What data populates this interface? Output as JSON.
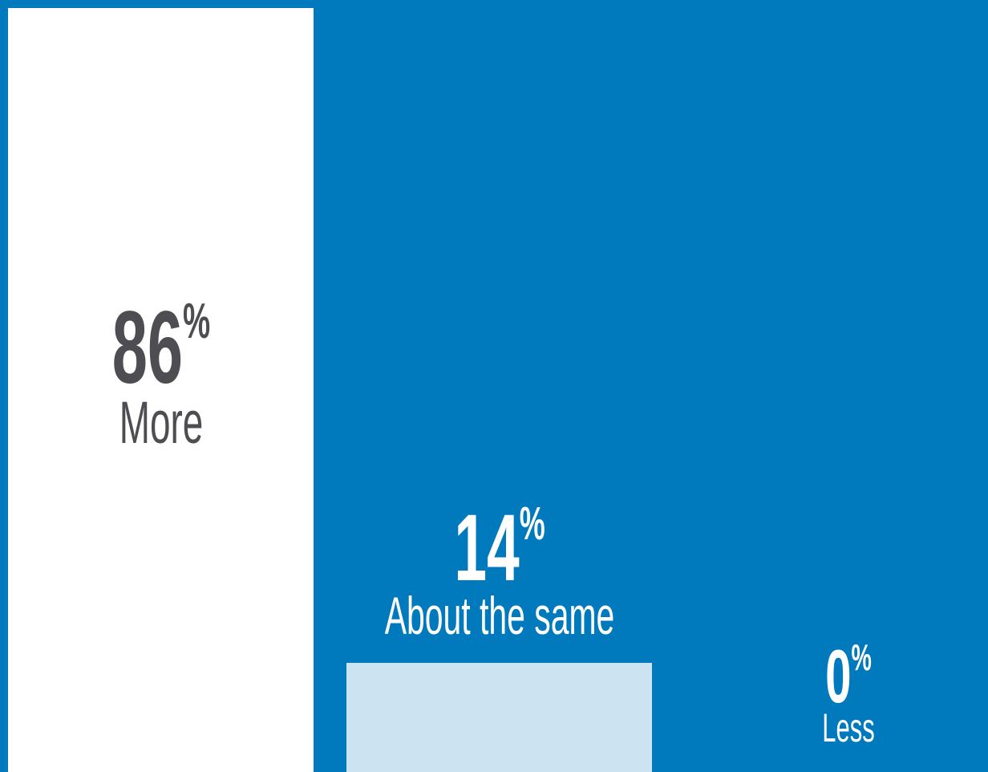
{
  "chart_data": {
    "type": "bar",
    "categories": [
      "More",
      "About the same",
      "Less"
    ],
    "values": [
      86,
      14,
      0
    ],
    "value_suffix": "%",
    "ylim": [
      0,
      100
    ],
    "colors": {
      "background": "#0079bd",
      "bars": [
        "#ffffff",
        "#cce3f1",
        "#ffffff"
      ],
      "value_text": [
        "#4d4d52",
        "#ffffff",
        "#ffffff"
      ],
      "category_text": [
        "#4d4d52",
        "#ffffff",
        "#ffffff"
      ]
    }
  }
}
